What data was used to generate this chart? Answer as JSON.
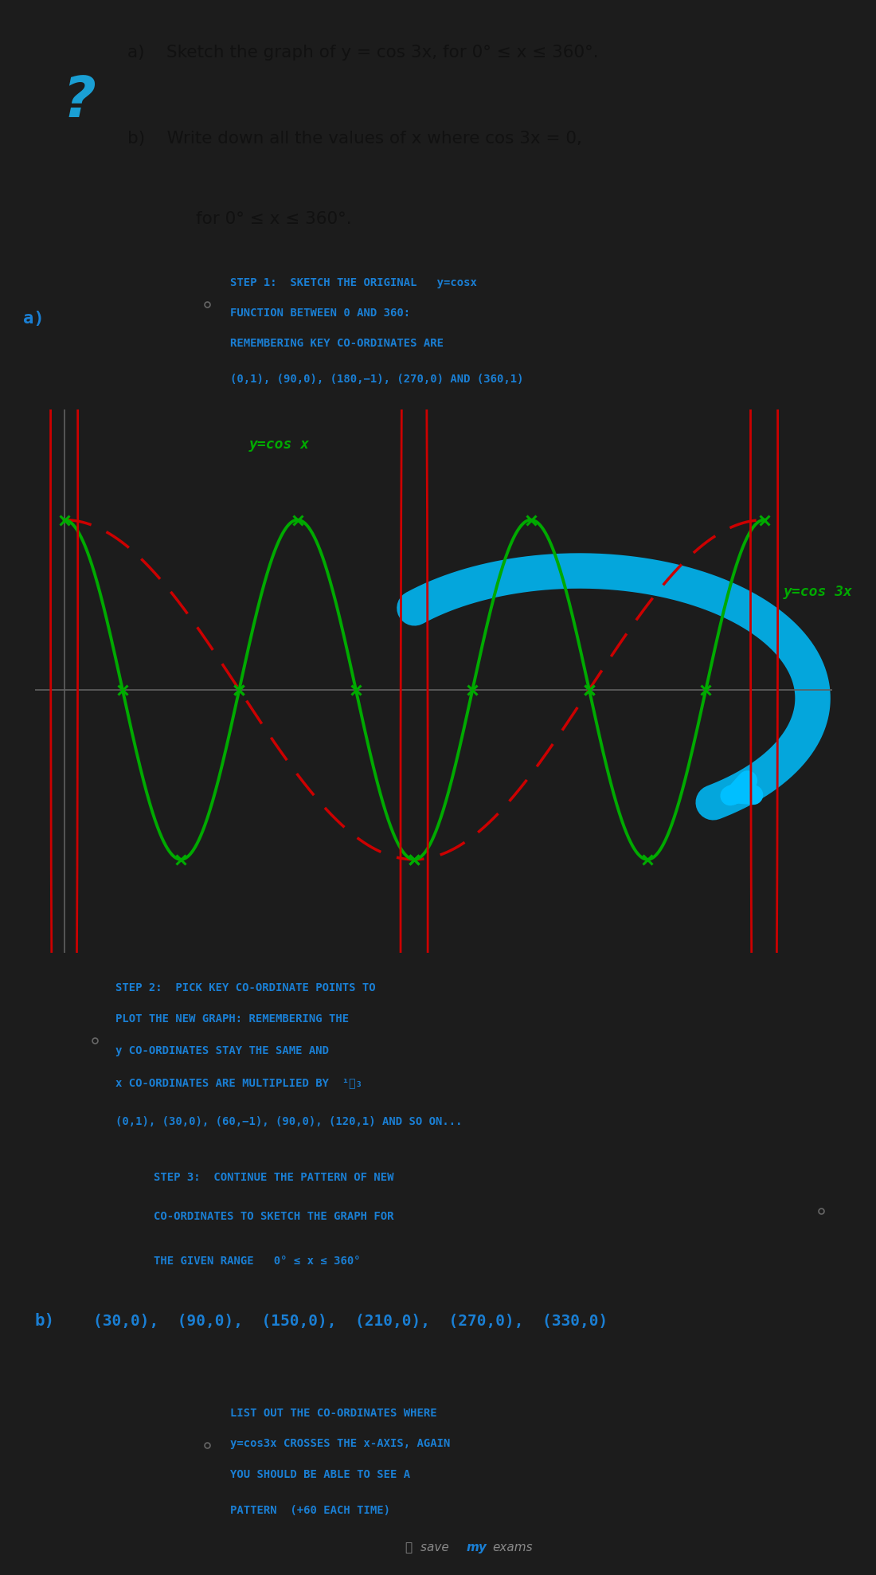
{
  "bg_color": "#1c1c1c",
  "question_box_color": "#f8f8f8",
  "step_box_color": "#d8e8f0",
  "blue_text": "#1a7fd4",
  "green_curve": "#00aa00",
  "red_dashed": "#cc0000",
  "cyan_arrow": "#00bfff",
  "dark_text": "#111111",
  "question_mark_color": "#1a9fd4",
  "step1_line1": "STEP 1:  SKETCH THE ORIGINAL   y=cosx",
  "step1_line2": "FUNCTION BETWEEN 0 AND 360:",
  "step1_line3": "REMEMBERING KEY CO-ORDINATES ARE",
  "step1_line4": "(0,1), (90,0), (180,−1), (270,0) AND (360,1)",
  "step2_line1": "STEP 2:  PICK KEY CO-ORDINATE POINTS TO",
  "step2_line2": "PLOT THE NEW GRAPH: REMEMBERING THE",
  "step2_line3": "y CO-ORDINATES STAY THE SAME AND",
  "step2_line4": "x CO-ORDINATES ARE MULTIPLIED BY  ¹⁄₃",
  "step2_line5": "(0,1), (30,0), (60,−1), (90,0), (120,1) AND SO ON...",
  "step3_line1": "STEP 3:  CONTINUE THE PATTERN OF NEW",
  "step3_line2": "CO-ORDINATES TO SKETCH THE GRAPH FOR",
  "step3_line3": "THE GIVEN RANGE   0° ≤ x ≤ 360°",
  "part_b_label": "b)",
  "part_b_answer": "(30,0),  (90,0),  (150,0),  (210,0),  (270,0),  (330,0)",
  "step4_line1": "LIST OUT THE CO-ORDINATES WHERE",
  "step4_line2": "y=cos3x CROSSES THE x-AXIS, AGAIN",
  "step4_line3": "YOU SHOULD BE ABLE TO SEE A",
  "step4_line4": "PATTERN  (+60 EACH TIME)",
  "footer_text": "save my exams",
  "q_a": "a)    Sketch the graph of y = cos 3x, for 0° ≤ x ≤ 360°.",
  "q_b1": "b)    Write down all the values of x where cos 3x = 0,",
  "q_b2": "        for 0° ≤ x ≤ 360°.",
  "label_a": "a)",
  "label_cosx": "y=cos x",
  "label_cos3x": "y=cos 3x"
}
